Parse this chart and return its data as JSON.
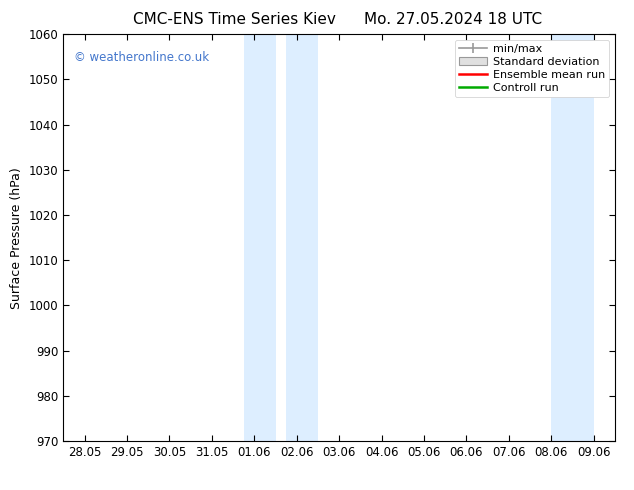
{
  "title_left": "CMC-ENS Time Series Kiev",
  "title_right": "Mo. 27.05.2024 18 UTC",
  "ylabel": "Surface Pressure (hPa)",
  "ylim": [
    970,
    1060
  ],
  "yticks": [
    970,
    980,
    990,
    1000,
    1010,
    1020,
    1030,
    1040,
    1050,
    1060
  ],
  "xtick_labels": [
    "28.05",
    "29.05",
    "30.05",
    "31.05",
    "01.06",
    "02.06",
    "03.06",
    "04.06",
    "05.06",
    "06.06",
    "07.06",
    "08.06",
    "09.06"
  ],
  "xtick_positions": [
    0,
    1,
    2,
    3,
    4,
    5,
    6,
    7,
    8,
    9,
    10,
    11,
    12
  ],
  "xlim": [
    -0.5,
    12.5
  ],
  "shade_bands": [
    {
      "start": 3.75,
      "end": 4.5
    },
    {
      "start": 4.75,
      "end": 5.5
    },
    {
      "start": 11.0,
      "end": 12.0
    }
  ],
  "shade_color": "#ddeeff",
  "background_color": "#ffffff",
  "watermark": "© weatheronline.co.uk",
  "watermark_color": "#4477cc",
  "legend_items": [
    {
      "label": "min/max",
      "color": "#999999",
      "type": "minmax"
    },
    {
      "label": "Standard deviation",
      "color": "#cccccc",
      "type": "stddev"
    },
    {
      "label": "Ensemble mean run",
      "color": "#ff0000",
      "type": "line"
    },
    {
      "label": "Controll run",
      "color": "#00aa00",
      "type": "line"
    }
  ],
  "title_fontsize": 11,
  "axis_fontsize": 9,
  "tick_fontsize": 8.5,
  "legend_fontsize": 8
}
